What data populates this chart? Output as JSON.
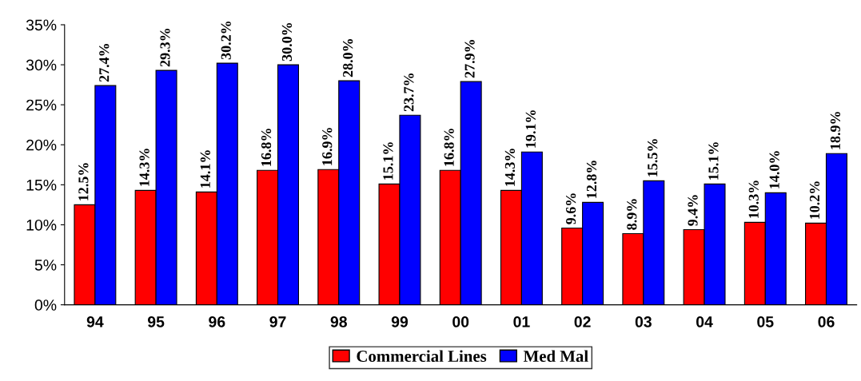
{
  "chart_data": {
    "type": "bar",
    "categories": [
      "94",
      "95",
      "96",
      "97",
      "98",
      "99",
      "00",
      "01",
      "02",
      "03",
      "04",
      "05",
      "06"
    ],
    "series": [
      {
        "name": "Commercial Lines",
        "color": "#ff0000",
        "values": [
          12.5,
          14.3,
          14.1,
          16.8,
          16.9,
          15.1,
          16.8,
          14.3,
          9.6,
          8.9,
          9.4,
          10.3,
          10.2
        ],
        "value_labels": [
          "12.5%",
          "14.3%",
          "14.1%",
          "16.8%",
          "16.9%",
          "15.1%",
          "16.8%",
          "14.3%",
          "9.6%",
          "8.9%",
          "9.4%",
          "10.3%",
          "10.2%"
        ]
      },
      {
        "name": "Med Mal",
        "color": "#0000ff",
        "values": [
          27.4,
          29.3,
          30.2,
          30.0,
          28.0,
          23.7,
          27.9,
          19.1,
          12.8,
          15.5,
          15.1,
          14.0,
          18.9
        ],
        "value_labels": [
          "27.4%",
          "29.3%",
          "30.2%",
          "30.0%",
          "28.0%",
          "23.7%",
          "27.9%",
          "19.1%",
          "12.8%",
          "15.5%",
          "15.1%",
          "14.0%",
          "18.9%"
        ]
      }
    ],
    "ylim": [
      0,
      35
    ],
    "yticks": [
      {
        "value": 0,
        "label": "0%"
      },
      {
        "value": 5,
        "label": "5%"
      },
      {
        "value": 10,
        "label": "10%"
      },
      {
        "value": 15,
        "label": "15%"
      },
      {
        "value": 20,
        "label": "20%"
      },
      {
        "value": 25,
        "label": "25%"
      },
      {
        "value": 30,
        "label": "30%"
      },
      {
        "value": 35,
        "label": "35%"
      }
    ],
    "grid": false,
    "legend": "bottom"
  }
}
